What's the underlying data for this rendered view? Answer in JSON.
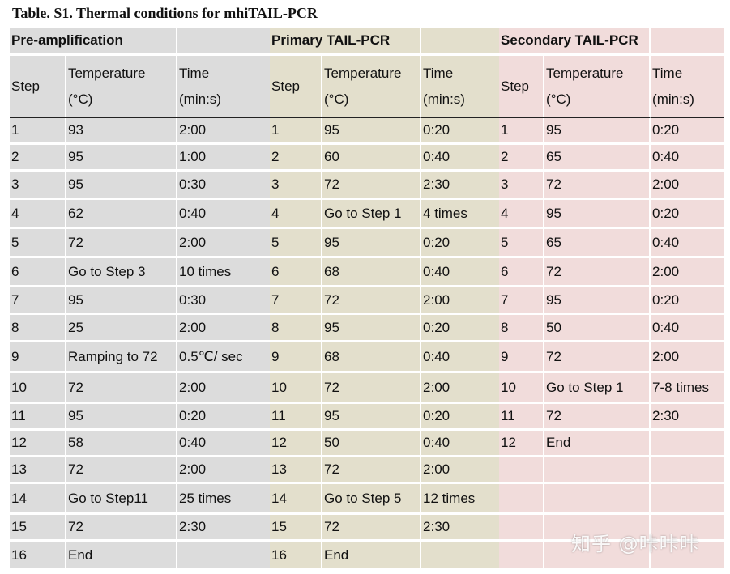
{
  "title": "Table. S1. Thermal conditions for mhiTAIL-PCR",
  "sections": [
    {
      "label": "Pre-amplification"
    },
    {
      "label": "Primary TAIL-PCR"
    },
    {
      "label": "Secondary TAIL-PCR"
    }
  ],
  "headers": {
    "step": "Step",
    "temp1": "Temperature",
    "temp2": "(°C)",
    "time1": "Time",
    "time2": "(min:s)"
  },
  "rows": [
    [
      "1",
      "93",
      "2:00",
      "1",
      "95",
      "0:20",
      "1",
      "95",
      "0:20"
    ],
    [
      "2",
      "95",
      "1:00",
      "2",
      "60",
      "0:40",
      "2",
      "65",
      "0:40"
    ],
    [
      "3",
      "95",
      "0:30",
      "3",
      "72",
      "2:30",
      "3",
      "72",
      "2:00"
    ],
    [
      "4",
      "62",
      "0:40",
      "4",
      "Go to Step 1",
      "4 times",
      "4",
      "95",
      "0:20"
    ],
    [
      "5",
      "72",
      "2:00",
      "5",
      "95",
      "0:20",
      "5",
      "65",
      "0:40"
    ],
    [
      "6",
      "Go to Step 3",
      "10 times",
      "6",
      "68",
      "0:40",
      "6",
      "72",
      "2:00"
    ],
    [
      "7",
      "95",
      "0:30",
      "7",
      "72",
      "2:00",
      "7",
      "95",
      "0:20"
    ],
    [
      "8",
      "25",
      "2:00",
      "8",
      "95",
      "0:20",
      "8",
      "50",
      "0:40"
    ],
    [
      "9",
      "Ramping to 72",
      "0.5℃/ sec",
      "9",
      "68",
      "0:40",
      "9",
      "72",
      "2:00"
    ],
    [
      "10",
      "72",
      "2:00",
      "10",
      "72",
      "2:00",
      "10",
      "Go to Step 1",
      "7-8 times"
    ],
    [
      "11",
      "95",
      "0:20",
      "11",
      "95",
      "0:20",
      "11",
      "72",
      "2:30"
    ],
    [
      "12",
      "58",
      "0:40",
      "12",
      "50",
      "0:40",
      "12",
      "End",
      ""
    ],
    [
      "13",
      "72",
      "2:00",
      "13",
      "72",
      "2:00",
      "",
      "",
      ""
    ],
    [
      "14",
      "Go to Step11",
      "25 times",
      "14",
      "Go to Step 5",
      "12 times",
      "",
      "",
      ""
    ],
    [
      "15",
      "72",
      "2:30",
      "15",
      "72",
      "2:30",
      "",
      "",
      ""
    ],
    [
      "16",
      "End",
      "",
      "16",
      "End",
      "",
      "",
      "",
      ""
    ]
  ],
  "watermark": "知乎 @咔咔咔"
}
